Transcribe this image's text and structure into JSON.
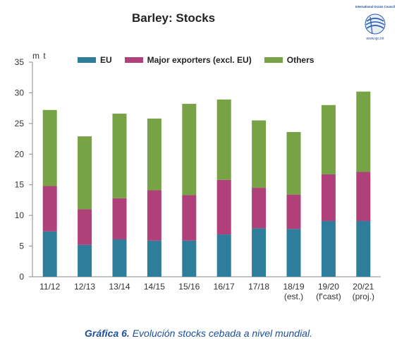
{
  "chart_data": {
    "type": "bar",
    "stacked": true,
    "title": "Barley: Stocks",
    "ylabel": "m t",
    "ylim": [
      0,
      35
    ],
    "yticks": [
      "0",
      "5",
      "10",
      "15",
      "20",
      "25",
      "30",
      "35"
    ],
    "grid": false,
    "legend_position": "top",
    "categories": [
      "11/12",
      "12/13",
      "13/14",
      "14/15",
      "15/16",
      "16/17",
      "17/18",
      "18/19",
      "19/20",
      "20/21"
    ],
    "category_sublabels": [
      "",
      "",
      "",
      "",
      "",
      "",
      "",
      "(est.)",
      "(f'cast)",
      "(proj.)"
    ],
    "series": [
      {
        "name": "EU",
        "color": "#2e7d9a",
        "values": [
          7.4,
          5.2,
          6.1,
          5.9,
          5.9,
          6.9,
          7.9,
          7.8,
          9.1,
          9.1
        ]
      },
      {
        "name": "Major exporters (excl. EU)",
        "color": "#b0407a",
        "values": [
          7.4,
          5.8,
          6.7,
          8.2,
          7.4,
          8.9,
          6.6,
          5.6,
          7.6,
          8.0
        ]
      },
      {
        "name": "Others",
        "color": "#77a346",
        "values": [
          12.4,
          11.9,
          13.8,
          11.7,
          14.9,
          13.1,
          11.0,
          10.2,
          11.3,
          13.1
        ]
      }
    ]
  },
  "logo": {
    "org_name": "International Grains Council",
    "url": "www.igc.int"
  },
  "caption": {
    "prefix": "Gráfica 6.",
    "text": " Evolución stocks cebada a nivel mundial."
  }
}
